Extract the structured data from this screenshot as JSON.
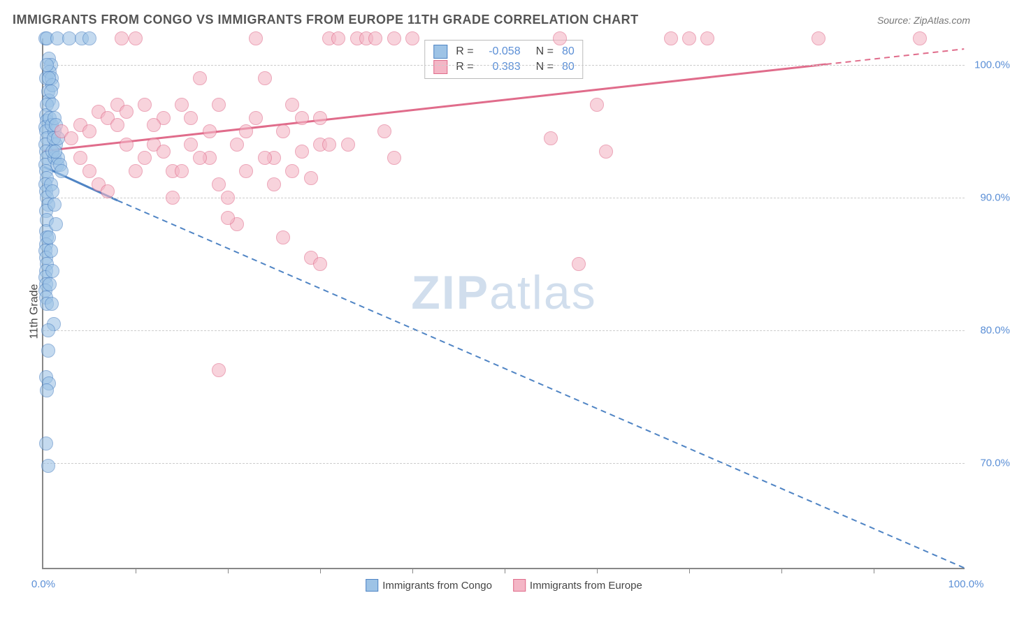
{
  "title": "IMMIGRANTS FROM CONGO VS IMMIGRANTS FROM EUROPE 11TH GRADE CORRELATION CHART",
  "source": "Source: ZipAtlas.com",
  "watermark": {
    "bold": "ZIP",
    "rest": "atlas"
  },
  "chart": {
    "type": "scatter",
    "ylabel": "11th Grade",
    "xlim": [
      0,
      100
    ],
    "ylim": [
      62,
      102
    ],
    "x_ticks_major": [
      0,
      100
    ],
    "x_tick_labels": [
      "0.0%",
      "100.0%"
    ],
    "x_ticks_minor": [
      10,
      20,
      30,
      40,
      50,
      60,
      70,
      80,
      90
    ],
    "y_ticks": [
      70,
      80,
      90,
      100
    ],
    "y_tick_labels": [
      "70.0%",
      "80.0%",
      "90.0%",
      "100.0%"
    ],
    "grid_color": "#cccccc",
    "background_color": "#ffffff",
    "axis_color": "#888888",
    "marker_radius": 10,
    "marker_stroke_width": 1.5,
    "marker_fill_opacity": 0.25,
    "series": [
      {
        "name": "Immigrants from Congo",
        "stroke": "#4f84c4",
        "fill": "#9dc3e6",
        "r_value": "-0.058",
        "n_value": "80",
        "trend": {
          "x1": 0,
          "y1": 92.3,
          "x2": 100,
          "y2": 60.5,
          "solid_until_x": 8
        },
        "points": [
          [
            0.2,
            102
          ],
          [
            0.4,
            102
          ],
          [
            1.5,
            102
          ],
          [
            2.8,
            102
          ],
          [
            4.2,
            102
          ],
          [
            5.0,
            102
          ],
          [
            0.3,
            99
          ],
          [
            0.5,
            98
          ],
          [
            0.6,
            97.3
          ],
          [
            0.4,
            97
          ],
          [
            0.3,
            96.2
          ],
          [
            0.4,
            95.8
          ],
          [
            0.2,
            95.3
          ],
          [
            0.3,
            95
          ],
          [
            0.4,
            94.5
          ],
          [
            0.2,
            94
          ],
          [
            0.3,
            93.5
          ],
          [
            0.4,
            93
          ],
          [
            0.2,
            92.5
          ],
          [
            0.3,
            92
          ],
          [
            0.4,
            91.5
          ],
          [
            0.2,
            91
          ],
          [
            0.3,
            90.5
          ],
          [
            0.4,
            90
          ],
          [
            0.5,
            89.5
          ],
          [
            0.3,
            89
          ],
          [
            0.4,
            88.3
          ],
          [
            0.3,
            87.5
          ],
          [
            0.4,
            87
          ],
          [
            0.3,
            86.5
          ],
          [
            0.2,
            86
          ],
          [
            0.3,
            85.5
          ],
          [
            0.4,
            85
          ],
          [
            0.3,
            84.5
          ],
          [
            0.2,
            84
          ],
          [
            0.3,
            83.5
          ],
          [
            0.2,
            83
          ],
          [
            0.3,
            82.5
          ],
          [
            0.4,
            82
          ],
          [
            0.5,
            78.5
          ],
          [
            0.3,
            76.5
          ],
          [
            0.6,
            76
          ],
          [
            0.4,
            75.5
          ],
          [
            0.3,
            71.5
          ],
          [
            0.5,
            69.8
          ],
          [
            1.2,
            93.0
          ],
          [
            1.5,
            92.5
          ],
          [
            0.6,
            100.5
          ],
          [
            0.8,
            100
          ],
          [
            0.7,
            99.5
          ],
          [
            0.9,
            99
          ],
          [
            1.0,
            98.5
          ],
          [
            1.2,
            95
          ],
          [
            1.4,
            94
          ],
          [
            1.0,
            93.5
          ],
          [
            1.6,
            93
          ],
          [
            1.8,
            92.5
          ],
          [
            2.0,
            92
          ],
          [
            0.8,
            91
          ],
          [
            1.0,
            90.5
          ],
          [
            1.2,
            89.5
          ],
          [
            1.4,
            88
          ],
          [
            0.6,
            87
          ],
          [
            0.8,
            86
          ],
          [
            1.0,
            84.5
          ],
          [
            0.7,
            83.5
          ],
          [
            0.9,
            82
          ],
          [
            1.1,
            80.5
          ],
          [
            0.5,
            80
          ],
          [
            0.7,
            96
          ],
          [
            0.9,
            95.5
          ],
          [
            1.1,
            94.5
          ],
          [
            1.3,
            93.5
          ],
          [
            0.4,
            100
          ],
          [
            0.6,
            99
          ],
          [
            0.8,
            98
          ],
          [
            1.0,
            97
          ],
          [
            1.2,
            96
          ],
          [
            1.4,
            95.5
          ],
          [
            1.6,
            94.5
          ]
        ]
      },
      {
        "name": "Immigrants from Europe",
        "stroke": "#e06c8b",
        "fill": "#f4b6c6",
        "r_value": "0.383",
        "n_value": "80",
        "trend": {
          "x1": 0,
          "y1": 93.5,
          "x2": 100,
          "y2": 101.2,
          "solid_until_x": 85
        },
        "points": [
          [
            2,
            95
          ],
          [
            3,
            94.5
          ],
          [
            4,
            95.5
          ],
          [
            5,
            95
          ],
          [
            6,
            96.5
          ],
          [
            7,
            96
          ],
          [
            8,
            97
          ],
          [
            8.5,
            102
          ],
          [
            9,
            96.5
          ],
          [
            10,
            92
          ],
          [
            11,
            93
          ],
          [
            12,
            94
          ],
          [
            13,
            96
          ],
          [
            14,
            92
          ],
          [
            15,
            97
          ],
          [
            16,
            94
          ],
          [
            17,
            99
          ],
          [
            18,
            93
          ],
          [
            19,
            91
          ],
          [
            20,
            90
          ],
          [
            21,
            88
          ],
          [
            22,
            95
          ],
          [
            23,
            102
          ],
          [
            24,
            99
          ],
          [
            25,
            93
          ],
          [
            26,
            87
          ],
          [
            27,
            92
          ],
          [
            28,
            96
          ],
          [
            29,
            85.5
          ],
          [
            30,
            94
          ],
          [
            31,
            102
          ],
          [
            32,
            102
          ],
          [
            33,
            94
          ],
          [
            34,
            102
          ],
          [
            35,
            102
          ],
          [
            36,
            102
          ],
          [
            37,
            95
          ],
          [
            38,
            102
          ],
          [
            19,
            77
          ],
          [
            40,
            102
          ],
          [
            38,
            93
          ],
          [
            30,
            85
          ],
          [
            55,
            94.5
          ],
          [
            56,
            102
          ],
          [
            58,
            85
          ],
          [
            60,
            97
          ],
          [
            61,
            93.5
          ],
          [
            68,
            102
          ],
          [
            70,
            102
          ],
          [
            72,
            102
          ],
          [
            84,
            102
          ],
          [
            95,
            102
          ],
          [
            4,
            93
          ],
          [
            5,
            92
          ],
          [
            6,
            91
          ],
          [
            7,
            90.5
          ],
          [
            8,
            95.5
          ],
          [
            9,
            94
          ],
          [
            10,
            102
          ],
          [
            11,
            97
          ],
          [
            12,
            95.5
          ],
          [
            13,
            93.5
          ],
          [
            14,
            90
          ],
          [
            15,
            92
          ],
          [
            16,
            96
          ],
          [
            17,
            93
          ],
          [
            18,
            95
          ],
          [
            19,
            97
          ],
          [
            20,
            88.5
          ],
          [
            21,
            94
          ],
          [
            22,
            92
          ],
          [
            23,
            96
          ],
          [
            24,
            93
          ],
          [
            25,
            91
          ],
          [
            26,
            95
          ],
          [
            27,
            97
          ],
          [
            28,
            93.5
          ],
          [
            29,
            91.5
          ],
          [
            30,
            96
          ],
          [
            31,
            94
          ]
        ]
      }
    ]
  },
  "stats_labels": {
    "r": "R =",
    "n": "N ="
  },
  "bottom_legend": [
    {
      "label": "Immigrants from Congo",
      "stroke": "#4f84c4",
      "fill": "#9dc3e6"
    },
    {
      "label": "Immigrants from Europe",
      "stroke": "#e06c8b",
      "fill": "#f4b6c6"
    }
  ]
}
